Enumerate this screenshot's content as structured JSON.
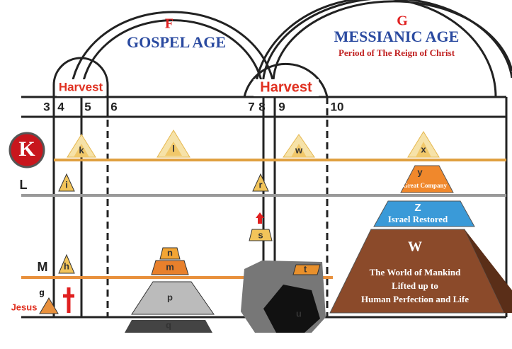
{
  "ages": [
    {
      "letter": "F",
      "title": "GOSPEL AGE"
    },
    {
      "letter": "G",
      "title": "MESSIANIC AGE",
      "subtitle": "Period of The Reign of Christ"
    }
  ],
  "harvests": [
    "Harvest",
    "Harvest"
  ],
  "epochs": [
    "3",
    "4",
    "5",
    "6",
    "7",
    "8",
    "9",
    "10"
  ],
  "planes": [
    "K",
    "L",
    "M"
  ],
  "jesus": {
    "label": "Jesus",
    "letter": "g"
  },
  "suns": [
    "k",
    "l",
    "w",
    "x"
  ],
  "small_pyramids": [
    "i",
    "r",
    "h",
    "s"
  ],
  "church": [
    "n",
    "m",
    "p",
    "q"
  ],
  "fallen": [
    "t",
    "u"
  ],
  "great_company": {
    "letter": "y",
    "label": "Great Company"
  },
  "israel": {
    "letter": "Z",
    "label": "Israel Restored"
  },
  "world": {
    "letter": "W",
    "lines": [
      "The World of Mankind",
      "Lifted up to",
      "Human Perfection and Life"
    ]
  }
}
